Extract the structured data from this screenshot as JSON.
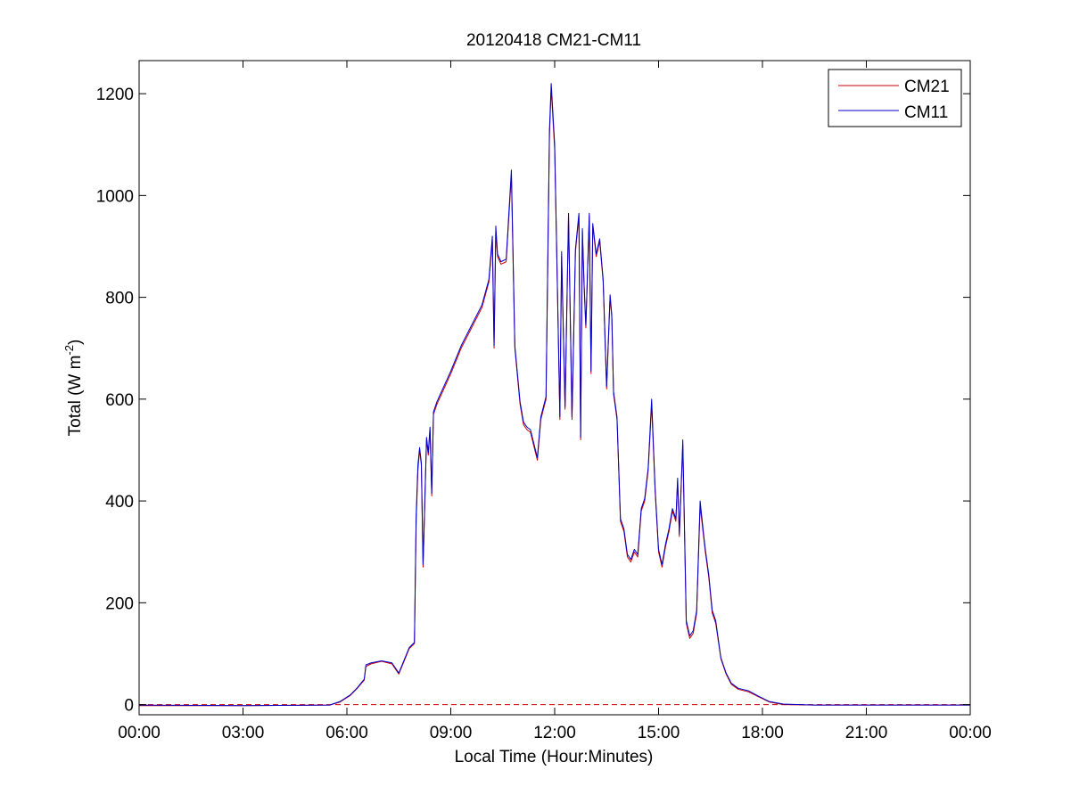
{
  "chart_data": {
    "type": "line",
    "title": "20120418 CM21-CM11",
    "xlabel": "Local Time (Hour:Minutes)",
    "ylabel": {
      "text": "Total (W m",
      "superscript": "-2",
      "suffix": ")"
    },
    "xlim": [
      0,
      24
    ],
    "ylim": [
      -20,
      1265
    ],
    "x_ticks": [
      0,
      3,
      6,
      9,
      12,
      15,
      18,
      21,
      24
    ],
    "x_tick_labels": [
      "00:00",
      "03:00",
      "06:00",
      "09:00",
      "12:00",
      "15:00",
      "18:00",
      "21:00",
      "00:00"
    ],
    "y_ticks": [
      0,
      200,
      400,
      600,
      800,
      1000,
      1200
    ],
    "y_tick_labels": [
      "0",
      "200",
      "400",
      "600",
      "800",
      "1000",
      "1200"
    ],
    "grid": false,
    "legend_position": "top-right",
    "reference_line": {
      "y": 0,
      "color": "#cc0000",
      "style": "dashed"
    },
    "x": [
      0,
      3,
      5.5,
      5.8,
      6.1,
      6.3,
      6.5,
      6.55,
      6.7,
      7.0,
      7.3,
      7.5,
      7.8,
      7.95,
      8.0,
      8.05,
      8.1,
      8.15,
      8.2,
      8.3,
      8.35,
      8.4,
      8.45,
      8.5,
      8.6,
      8.8,
      9.0,
      9.3,
      9.6,
      9.9,
      10.1,
      10.2,
      10.25,
      10.3,
      10.35,
      10.45,
      10.6,
      10.75,
      10.85,
      11.0,
      11.1,
      11.2,
      11.3,
      11.5,
      11.6,
      11.75,
      11.85,
      11.9,
      11.95,
      12.0,
      12.05,
      12.15,
      12.2,
      12.3,
      12.4,
      12.5,
      12.6,
      12.7,
      12.75,
      12.8,
      12.85,
      12.9,
      13.0,
      13.05,
      13.1,
      13.2,
      13.3,
      13.4,
      13.5,
      13.6,
      13.65,
      13.7,
      13.8,
      13.9,
      14.0,
      14.1,
      14.2,
      14.3,
      14.4,
      14.5,
      14.6,
      14.7,
      14.8,
      14.9,
      15.0,
      15.1,
      15.2,
      15.3,
      15.4,
      15.5,
      15.55,
      15.6,
      15.65,
      15.7,
      15.8,
      15.9,
      16.0,
      16.1,
      16.2,
      16.3,
      16.35,
      16.45,
      16.55,
      16.65,
      16.8,
      16.95,
      17.1,
      17.3,
      17.6,
      17.9,
      18.2,
      18.6,
      19.5,
      21,
      22.5,
      24
    ],
    "series": [
      {
        "name": "CM21",
        "color": "#cc0000",
        "values": [
          -2,
          -2,
          -1,
          5,
          18,
          32,
          48,
          75,
          80,
          85,
          80,
          60,
          110,
          120,
          360,
          460,
          500,
          470,
          270,
          520,
          490,
          540,
          410,
          570,
          590,
          620,
          650,
          700,
          740,
          780,
          830,
          910,
          700,
          930,
          880,
          865,
          870,
          1040,
          700,
          590,
          550,
          540,
          535,
          480,
          560,
          600,
          1120,
          1210,
          1150,
          1090,
          920,
          560,
          880,
          580,
          960,
          560,
          890,
          960,
          520,
          930,
          820,
          740,
          960,
          650,
          940,
          880,
          910,
          830,
          620,
          800,
          760,
          610,
          560,
          360,
          340,
          290,
          280,
          300,
          290,
          380,
          400,
          460,
          590,
          420,
          300,
          270,
          310,
          340,
          380,
          360,
          440,
          330,
          420,
          510,
          160,
          130,
          140,
          180,
          390,
          330,
          300,
          250,
          180,
          160,
          90,
          60,
          40,
          30,
          25,
          15,
          5,
          0,
          -1,
          -1,
          -1,
          -1
        ]
      },
      {
        "name": "CM11",
        "color": "#0000cc",
        "values": [
          -1,
          -2,
          -1,
          6,
          19,
          33,
          50,
          78,
          82,
          86,
          82,
          62,
          112,
          122,
          370,
          470,
          505,
          475,
          275,
          525,
          495,
          545,
          415,
          575,
          595,
          625,
          655,
          705,
          745,
          785,
          835,
          920,
          705,
          940,
          885,
          870,
          875,
          1050,
          705,
          595,
          555,
          545,
          540,
          485,
          565,
          605,
          1130,
          1220,
          1160,
          1100,
          925,
          565,
          890,
          585,
          965,
          565,
          895,
          965,
          525,
          935,
          825,
          745,
          965,
          655,
          945,
          885,
          915,
          835,
          625,
          805,
          765,
          615,
          565,
          365,
          345,
          295,
          285,
          305,
          295,
          385,
          405,
          465,
          600,
          425,
          305,
          275,
          315,
          345,
          385,
          365,
          445,
          335,
          425,
          520,
          165,
          135,
          145,
          185,
          400,
          335,
          305,
          255,
          185,
          165,
          92,
          62,
          42,
          32,
          27,
          16,
          6,
          1,
          -1,
          -1,
          -1,
          -1
        ]
      }
    ]
  }
}
